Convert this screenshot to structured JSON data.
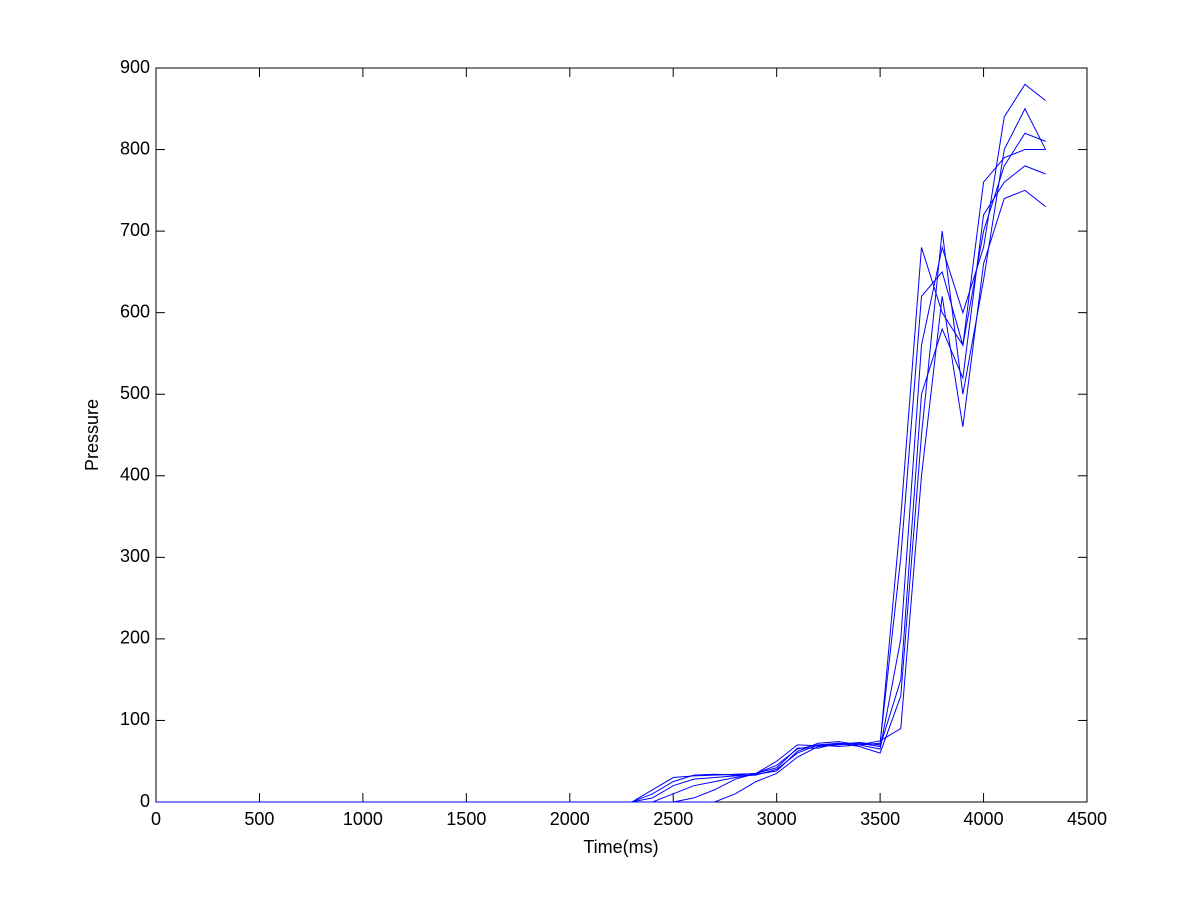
{
  "chart_data": {
    "type": "line",
    "xlabel": "Time(ms)",
    "ylabel": "Pressure",
    "color": "#0000ff",
    "x": [
      0,
      100,
      200,
      300,
      400,
      500,
      600,
      700,
      800,
      900,
      1000,
      1100,
      1200,
      1300,
      1400,
      1500,
      1600,
      1700,
      1800,
      1900,
      2000,
      2100,
      2200,
      2300,
      2400,
      2500,
      2600,
      2700,
      2800,
      2900,
      3000,
      3100,
      3200,
      3300,
      3400,
      3500,
      3600,
      3700,
      3800,
      3900,
      4000,
      4100,
      4200,
      4300
    ],
    "series": [
      {
        "values": [
          0,
          0,
          0,
          0,
          0,
          0,
          0,
          0,
          0,
          0,
          0,
          0,
          0,
          0,
          0,
          0,
          0,
          0,
          0,
          0,
          0,
          0,
          0,
          0,
          15,
          30,
          32,
          33,
          34,
          35,
          45,
          65,
          70,
          72,
          70,
          72,
          300,
          620,
          650,
          560,
          700,
          780,
          820,
          810
        ]
      },
      {
        "values": [
          0,
          0,
          0,
          0,
          0,
          0,
          0,
          0,
          0,
          0,
          0,
          0,
          0,
          0,
          0,
          0,
          0,
          0,
          0,
          0,
          0,
          0,
          0,
          0,
          0,
          0,
          0,
          0,
          10,
          25,
          35,
          55,
          68,
          70,
          72,
          68,
          150,
          500,
          580,
          520,
          720,
          760,
          780,
          770
        ]
      },
      {
        "values": [
          0,
          0,
          0,
          0,
          0,
          0,
          0,
          0,
          0,
          0,
          0,
          0,
          0,
          0,
          0,
          0,
          0,
          0,
          0,
          0,
          0,
          0,
          0,
          0,
          5,
          20,
          28,
          30,
          32,
          33,
          40,
          60,
          70,
          68,
          70,
          65,
          200,
          560,
          680,
          600,
          680,
          840,
          880,
          860
        ]
      },
      {
        "values": [
          0,
          0,
          0,
          0,
          0,
          0,
          0,
          0,
          0,
          0,
          0,
          0,
          0,
          0,
          0,
          0,
          0,
          0,
          0,
          0,
          0,
          0,
          0,
          0,
          0,
          10,
          20,
          25,
          30,
          34,
          38,
          62,
          72,
          74,
          70,
          75,
          90,
          400,
          620,
          460,
          660,
          740,
          750,
          730
        ]
      },
      {
        "values": [
          0,
          0,
          0,
          0,
          0,
          0,
          0,
          0,
          0,
          0,
          0,
          0,
          0,
          0,
          0,
          0,
          0,
          0,
          0,
          0,
          0,
          0,
          0,
          0,
          0,
          0,
          5,
          15,
          28,
          35,
          42,
          66,
          66,
          72,
          68,
          60,
          130,
          450,
          700,
          500,
          640,
          800,
          850,
          800
        ]
      },
      {
        "values": [
          0,
          0,
          0,
          0,
          0,
          0,
          0,
          0,
          0,
          0,
          0,
          0,
          0,
          0,
          0,
          0,
          0,
          0,
          0,
          0,
          0,
          0,
          0,
          0,
          10,
          25,
          33,
          34,
          33,
          35,
          50,
          70,
          69,
          71,
          73,
          70,
          350,
          680,
          600,
          560,
          760,
          790,
          800,
          800
        ]
      }
    ],
    "xlim": [
      0,
      4500
    ],
    "xticks": [
      0,
      500,
      1000,
      1500,
      2000,
      2500,
      3000,
      3500,
      4000,
      4500
    ],
    "ylim": [
      0,
      900
    ],
    "yticks": [
      0,
      100,
      200,
      300,
      400,
      500,
      600,
      700,
      800,
      900
    ]
  }
}
